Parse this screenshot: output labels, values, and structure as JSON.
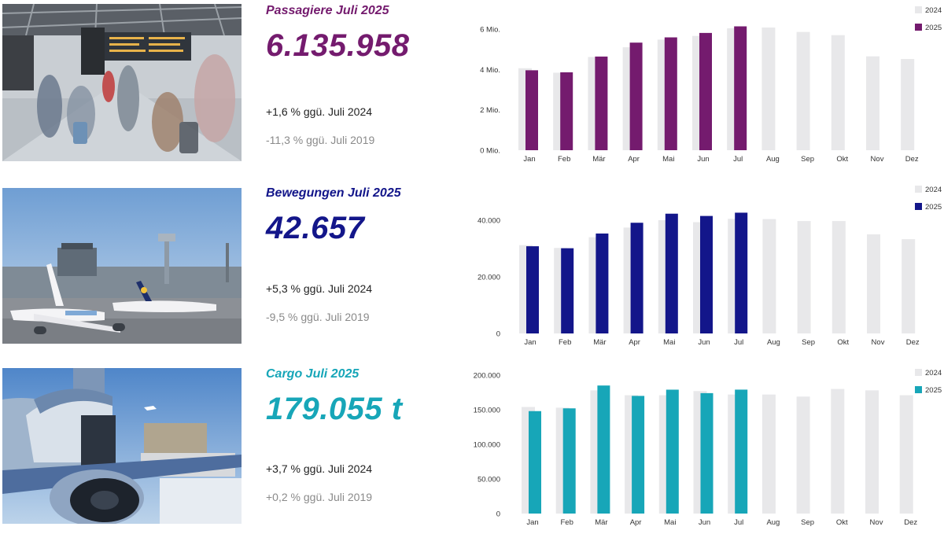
{
  "colors": {
    "bar2024": "#e8e8ea",
    "passengers": "#741b6e",
    "movements": "#13168a",
    "cargo": "#17a6b8",
    "axis_text": "#333333"
  },
  "panels": [
    {
      "key": "passengers",
      "photo_icon": "airport-terminal-photo",
      "title": "Passagiere Juli 2025",
      "value": "6.135.958",
      "comparison_2024": "+1,6 % ggü. Juli 2024",
      "comparison_2019": "-11,3 % ggü. Juli 2019",
      "color": "#741b6e"
    },
    {
      "key": "movements",
      "photo_icon": "aircraft-apron-photo",
      "title": "Bewegungen Juli 2025",
      "value": "42.657",
      "comparison_2024": "+5,3 % ggü. Juli 2024",
      "comparison_2019": "-9,5 % ggü. Juli 2019",
      "color": "#13168a"
    },
    {
      "key": "cargo",
      "photo_icon": "cargo-aircraft-photo",
      "title": "Cargo Juli 2025",
      "value": "179.055 t",
      "comparison_2024": "+3,7 % ggü. Juli 2024",
      "comparison_2019": "+0,2 % ggü. Juli 2019",
      "color": "#17a6b8"
    }
  ],
  "chart_data": [
    {
      "type": "bar",
      "title": "",
      "xlabel": "",
      "ylabel": "",
      "categories": [
        "Jan",
        "Feb",
        "Mär",
        "Apr",
        "Mai",
        "Jun",
        "Jul",
        "Aug",
        "Sep",
        "Okt",
        "Nov",
        "Dez"
      ],
      "ylim": [
        0,
        6500000
      ],
      "yticks": [
        0,
        2000000,
        4000000,
        6000000
      ],
      "ytick_labels": [
        "0 Mio.",
        "2 Mio.",
        "4 Mio.",
        "6 Mio."
      ],
      "grid": false,
      "legend_position": "top-right",
      "series": [
        {
          "name": "2024",
          "color": "#e8e8ea",
          "values": [
            4060000,
            3840000,
            4620000,
            5100000,
            5480000,
            5660000,
            6040000,
            6080000,
            5860000,
            5700000,
            4650000,
            4520000
          ]
        },
        {
          "name": "2025",
          "color": "#741b6e",
          "values": [
            3960000,
            3860000,
            4640000,
            5330000,
            5590000,
            5810000,
            6135958,
            null,
            null,
            null,
            null,
            null
          ]
        }
      ]
    },
    {
      "type": "bar",
      "title": "",
      "xlabel": "",
      "ylabel": "",
      "categories": [
        "Jan",
        "Feb",
        "Mär",
        "Apr",
        "Mai",
        "Jun",
        "Jul",
        "Aug",
        "Sep",
        "Okt",
        "Nov",
        "Dez"
      ],
      "ylim": [
        0,
        45000
      ],
      "yticks": [
        0,
        20000,
        40000
      ],
      "ytick_labels": [
        "0",
        "20.000",
        "40.000"
      ],
      "grid": false,
      "legend_position": "top-right",
      "series": [
        {
          "name": "2024",
          "color": "#e8e8ea",
          "values": [
            31200,
            30200,
            34000,
            37400,
            40000,
            39300,
            40500,
            40400,
            39700,
            39700,
            35000,
            33300
          ]
        },
        {
          "name": "2025",
          "color": "#13168a",
          "values": [
            30800,
            30100,
            35300,
            39100,
            42300,
            41500,
            42657,
            null,
            null,
            null,
            null,
            null
          ]
        }
      ]
    },
    {
      "type": "bar",
      "title": "",
      "xlabel": "",
      "ylabel": "",
      "categories": [
        "Jan",
        "Feb",
        "Mär",
        "Apr",
        "Mai",
        "Jun",
        "Jul",
        "Aug",
        "Sep",
        "Okt",
        "Nov",
        "Dez"
      ],
      "ylim": [
        0,
        200000
      ],
      "yticks": [
        0,
        50000,
        100000,
        150000,
        200000
      ],
      "ytick_labels": [
        "0",
        "50.000",
        "100.000",
        "150.000",
        "200.000"
      ],
      "grid": false,
      "legend_position": "top-right",
      "series": [
        {
          "name": "2024",
          "color": "#e8e8ea",
          "values": [
            154000,
            153000,
            178000,
            171000,
            171000,
            177000,
            172000,
            172000,
            169000,
            180000,
            178000,
            171000
          ]
        },
        {
          "name": "2025",
          "color": "#17a6b8",
          "values": [
            148000,
            152000,
            185000,
            170000,
            179000,
            174000,
            179055,
            null,
            null,
            null,
            null,
            null
          ]
        }
      ]
    }
  ]
}
